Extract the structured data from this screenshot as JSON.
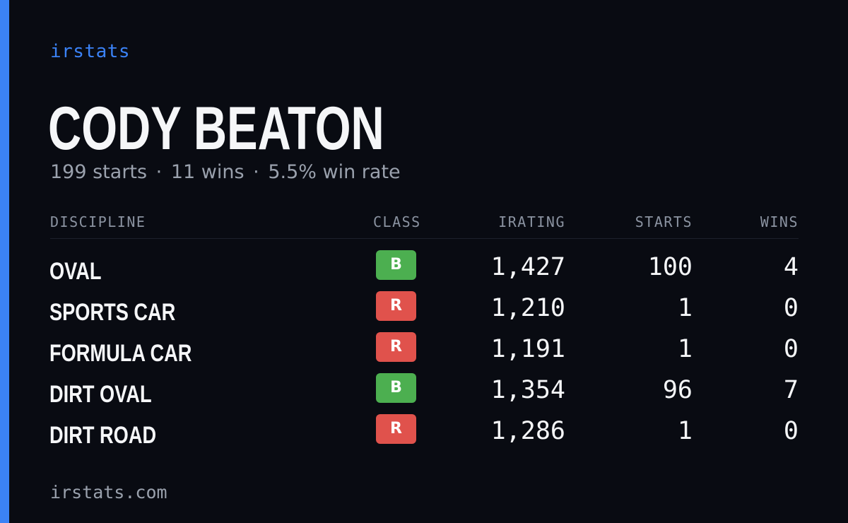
{
  "brand": "irstats",
  "driver": {
    "name": "CODY BEATON",
    "starts_text": "199 starts",
    "wins_text": "11 wins",
    "win_rate_text": "5.5% win rate",
    "separator": "·"
  },
  "table": {
    "headers": {
      "discipline": "DISCIPLINE",
      "class": "CLASS",
      "irating": "IRATING",
      "starts": "STARTS",
      "wins": "WINS"
    },
    "rows": [
      {
        "discipline": "OVAL",
        "class": "B",
        "irating": "1,427",
        "starts": "100",
        "wins": "4"
      },
      {
        "discipline": "SPORTS CAR",
        "class": "R",
        "irating": "1,210",
        "starts": "1",
        "wins": "0"
      },
      {
        "discipline": "FORMULA CAR",
        "class": "R",
        "irating": "1,191",
        "starts": "1",
        "wins": "0"
      },
      {
        "discipline": "DIRT OVAL",
        "class": "B",
        "irating": "1,354",
        "starts": "96",
        "wins": "7"
      },
      {
        "discipline": "DIRT ROAD",
        "class": "R",
        "irating": "1,286",
        "starts": "1",
        "wins": "0"
      }
    ]
  },
  "footer": "irstats.com",
  "colors": {
    "background": "#090b12",
    "accent": "#3b82f6",
    "class_b": "#4caf50",
    "class_r": "#e0524c",
    "text_primary": "#f5f6f8",
    "text_muted": "#9aa1ad"
  }
}
